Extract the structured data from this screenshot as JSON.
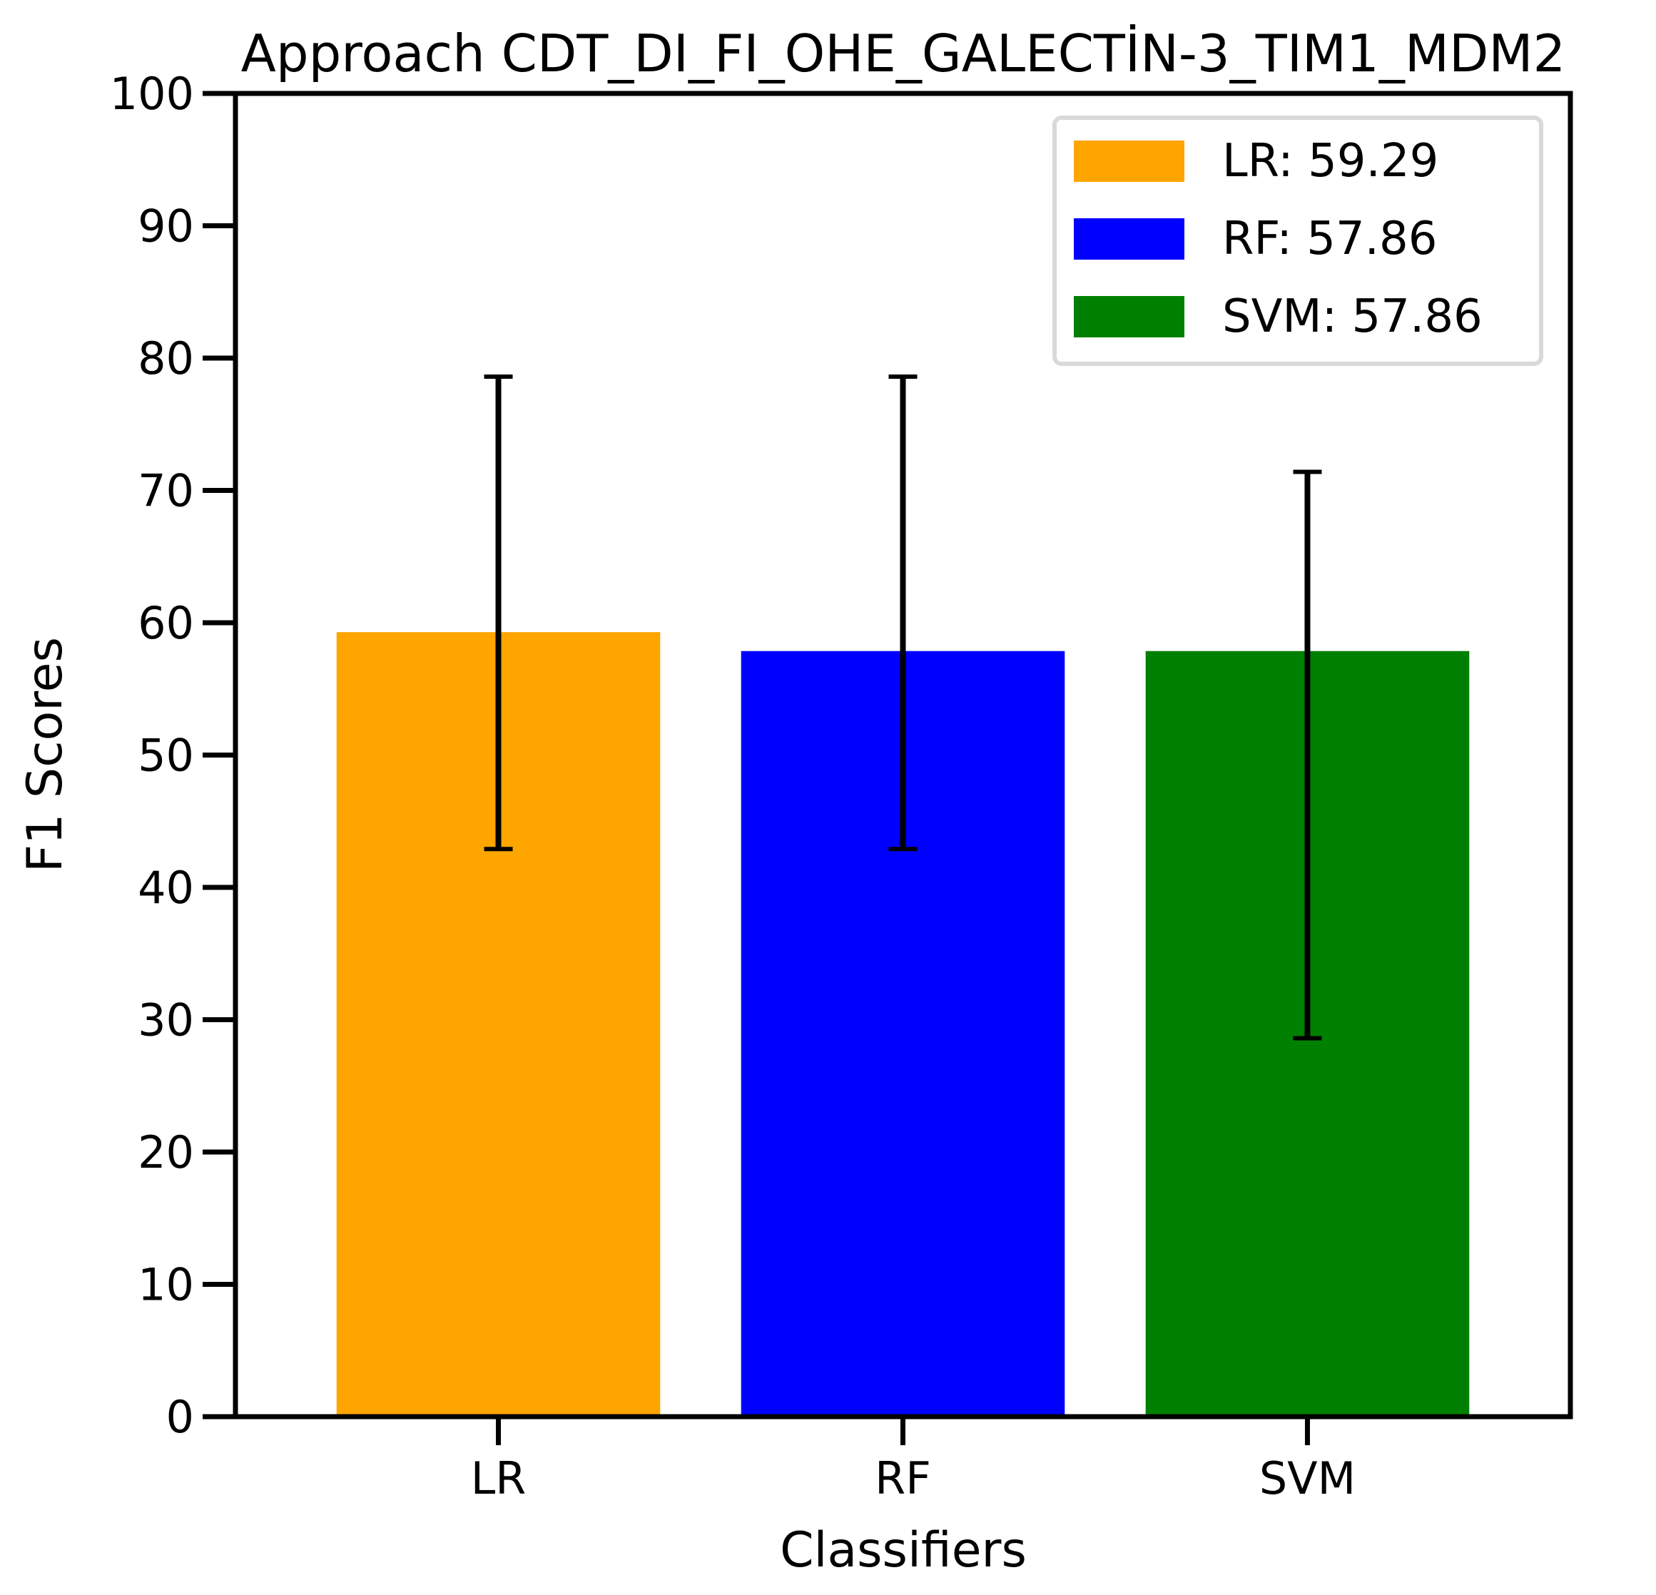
{
  "chart_data": {
    "type": "bar",
    "title": "Approach CDT_DI_FI_OHE_GALECTİN-3_TIM1_MDM2",
    "xlabel": "Classifiers",
    "ylabel": "F1 Scores",
    "ylim": [
      0,
      100
    ],
    "yticks": [
      "0",
      "10",
      "20",
      "30",
      "40",
      "50",
      "60",
      "70",
      "80",
      "90",
      "100"
    ],
    "categories": [
      "LR",
      "RF",
      "SVM"
    ],
    "values": [
      59.29,
      57.86,
      57.86
    ],
    "error_low": [
      42.9,
      42.9,
      28.6
    ],
    "error_high": [
      78.6,
      78.6,
      71.4
    ],
    "colors": [
      "#ffa500",
      "#0000ff",
      "#008000"
    ],
    "grid": false,
    "legend_position": "top-right",
    "legend": [
      {
        "label": "LR: 59.29",
        "color": "#ffa500"
      },
      {
        "label": "RF: 57.86",
        "color": "#0000ff"
      },
      {
        "label": "SVM: 57.86",
        "color": "#008000"
      }
    ]
  }
}
